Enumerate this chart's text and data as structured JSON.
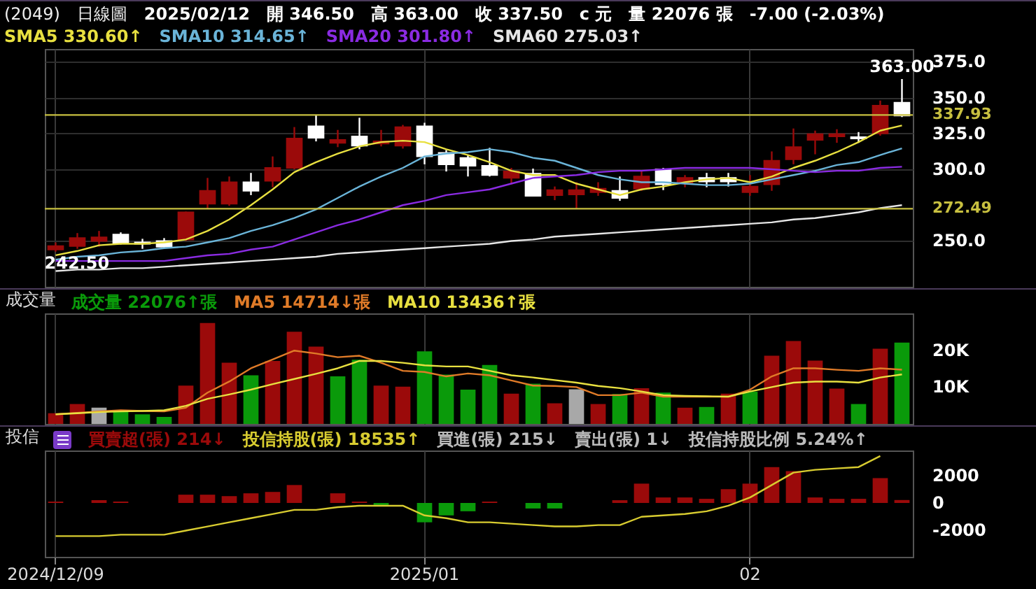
{
  "chart_data": [
    {
      "type": "candlestick",
      "title": "(2049)",
      "subtitle": "日線圖",
      "annotations": [
        "2025/02/12",
        "開 346.50",
        "高 363.00",
        "收 337.50",
        "c 元",
        "量 22076 張",
        "-7.00 (-2.03%)",
        {
          "text": "363.00",
          "y": 363
        },
        {
          "text": "242.50",
          "y": 242.5
        }
      ],
      "categories": [
        "2024/12/09",
        null,
        null,
        null,
        null,
        null,
        null,
        null,
        null,
        null,
        null,
        null,
        null,
        null,
        null,
        null,
        null,
        "2025/01",
        null,
        null,
        null,
        null,
        null,
        null,
        null,
        null,
        null,
        null,
        null,
        null,
        null,
        null,
        "02",
        null,
        null,
        null,
        null,
        null,
        null,
        null
      ],
      "ohlc": [
        [
          244,
          249,
          242.5,
          246.5
        ],
        [
          246.5,
          255.5,
          244.5,
          252
        ],
        [
          250,
          257,
          246,
          252.5
        ],
        [
          254.5,
          256,
          247.5,
          248.5
        ],
        [
          249,
          251.5,
          244.5,
          248
        ],
        [
          250,
          252,
          245.5,
          246
        ],
        [
          251,
          270.5,
          250,
          270
        ],
        [
          276,
          294,
          272.5,
          285
        ],
        [
          276,
          295,
          274.5,
          291
        ],
        [
          291,
          297.5,
          282,
          285
        ],
        [
          292,
          309,
          287.5,
          301
        ],
        [
          301,
          329.5,
          300,
          321.5
        ],
        [
          330,
          338,
          319.5,
          322
        ],
        [
          318.5,
          327.5,
          315.5,
          320.5
        ],
        [
          323,
          336,
          314,
          316.5
        ],
        [
          318,
          327.5,
          316,
          319.5
        ],
        [
          316.5,
          331,
          314.5,
          329.5
        ],
        [
          330,
          332.5,
          303.5,
          309
        ],
        [
          311.5,
          313.5,
          298.5,
          303.5
        ],
        [
          308,
          310,
          295,
          302.5
        ],
        [
          302.5,
          315,
          295,
          296
        ],
        [
          294,
          301,
          289.5,
          298.5
        ],
        [
          297,
          300.5,
          281,
          281.5
        ],
        [
          282,
          288,
          278.5,
          285.5
        ],
        [
          282.5,
          291,
          272.5,
          285.5
        ],
        [
          284,
          291,
          281.5,
          286.5
        ],
        [
          285,
          295,
          278,
          280
        ],
        [
          286.5,
          299.5,
          285,
          295
        ],
        [
          300,
          301,
          285.5,
          289.5
        ],
        [
          290.5,
          296,
          287.5,
          294
        ],
        [
          294,
          297.5,
          287.5,
          291.5
        ],
        [
          294,
          297.5,
          288,
          291.5
        ],
        [
          284,
          296,
          281.5,
          288
        ],
        [
          289.5,
          312.5,
          285,
          306
        ],
        [
          307,
          328.5,
          303.5,
          315.5
        ],
        [
          320.5,
          327,
          310.5,
          324.5
        ],
        [
          323,
          328,
          318.5,
          324.5
        ],
        [
          322.5,
          326,
          318.5,
          321.5
        ],
        [
          325,
          348,
          323.5,
          344.5
        ],
        [
          346.5,
          363,
          336.5,
          337.5
        ]
      ],
      "colors": [
        "#9b0a0a",
        "#9b0a0a",
        "#9b0a0a",
        "#ffffff",
        "#ffffff",
        "#ffffff",
        "#9b0a0a",
        "#9b0a0a",
        "#9b0a0a",
        "#ffffff",
        "#9b0a0a",
        "#9b0a0a",
        "#ffffff",
        "#9b0a0a",
        "#ffffff",
        "#9b0a0a",
        "#9b0a0a",
        "#ffffff",
        "#ffffff",
        "#ffffff",
        "#ffffff",
        "#9b0a0a",
        "#ffffff",
        "#9b0a0a",
        "#9b0a0a",
        "#9b0a0a",
        "#ffffff",
        "#9b0a0a",
        "#ffffff",
        "#9b0a0a",
        "#ffffff",
        "#ffffff",
        "#9b0a0a",
        "#9b0a0a",
        "#9b0a0a",
        "#9b0a0a",
        "#9b0a0a",
        "#ffffff",
        "#9b0a0a",
        "#ffffff"
      ],
      "series": [
        {
          "name": "SMA5 330.60↑",
          "type": "line",
          "color": "#e8e040",
          "values": [
            240,
            243,
            247,
            248,
            248,
            249,
            251,
            257,
            265,
            275,
            286,
            298,
            305,
            311,
            316,
            319,
            320,
            319,
            314,
            310,
            305,
            299,
            296,
            296,
            290,
            286,
            282,
            286,
            288,
            291,
            293,
            294,
            291,
            295,
            301,
            306,
            312,
            319,
            327,
            330.6
          ]
        },
        {
          "name": "SMA10 314.65↑",
          "type": "line",
          "color": "#6ab4d8",
          "values": [
            237,
            239,
            240,
            242,
            243,
            245,
            246,
            249,
            252,
            257,
            261,
            266,
            272,
            280,
            288,
            295,
            301,
            309,
            311,
            312,
            314,
            312,
            308,
            306,
            301,
            296,
            293,
            291,
            291,
            290,
            289,
            289,
            290,
            293,
            296,
            299,
            303,
            305,
            310,
            314.65
          ]
        },
        {
          "name": "SMA20 301.80↑",
          "type": "line",
          "color": "#8a2be2",
          "values": [
            236,
            236,
            236,
            236,
            236,
            236,
            238,
            240,
            241,
            244,
            246,
            251,
            256,
            261,
            265,
            270,
            275,
            278,
            282,
            284,
            286,
            290,
            294,
            295,
            296,
            298,
            299,
            299,
            300,
            301,
            301,
            301,
            301,
            300,
            299,
            298,
            299,
            299,
            301,
            301.8
          ]
        },
        {
          "name": "SMA60 275.03↑",
          "type": "line",
          "color": "#e6e6e6",
          "values": [
            229,
            230,
            230,
            231,
            231,
            232,
            233,
            234,
            235,
            236,
            237,
            238,
            239,
            241,
            242,
            243,
            244,
            245,
            246,
            247,
            248,
            250,
            251,
            253,
            254,
            255,
            256,
            257,
            258,
            259,
            260,
            261,
            262,
            263,
            265,
            266,
            268,
            270,
            273,
            275.03
          ]
        }
      ],
      "ylim": [
        218,
        384
      ],
      "yticks": [
        {
          "value": 250,
          "label": "250.0"
        },
        {
          "value": 300,
          "label": "300.0"
        },
        {
          "value": 325,
          "label": "325.0"
        },
        {
          "value": 350,
          "label": "350.0"
        },
        {
          "value": 375,
          "label": "375.0"
        }
      ],
      "ref_lines": [
        {
          "axis": "y",
          "value": 337.93,
          "label": "337.93",
          "color": "#c8c040"
        },
        {
          "axis": "y",
          "value": 272.49,
          "label": "272.49",
          "color": "#c8c040"
        }
      ],
      "grid": true,
      "legend": "top left",
      "tick_labels": "y"
    },
    {
      "type": "bar",
      "title": "成交量",
      "categories": [
        "2024/12/09",
        null,
        null,
        null,
        null,
        null,
        null,
        null,
        null,
        null,
        null,
        null,
        null,
        null,
        null,
        null,
        null,
        "2025/01",
        null,
        null,
        null,
        null,
        null,
        null,
        null,
        null,
        null,
        null,
        null,
        null,
        null,
        null,
        "02",
        null,
        null,
        null,
        null,
        null,
        null,
        null
      ],
      "series": [
        {
          "name": "成交量 22076↑張",
          "type": "bar",
          "colors": [
            "#9b0a0a",
            "#9b0a0a",
            "#a8a8a8",
            "#0a9a0a",
            "#0a9a0a",
            "#0a9a0a",
            "#9b0a0a",
            "#9b0a0a",
            "#9b0a0a",
            "#0a9a0a",
            "#9b0a0a",
            "#9b0a0a",
            "#9b0a0a",
            "#0a9a0a",
            "#0a9a0a",
            "#9b0a0a",
            "#9b0a0a",
            "#0a9a0a",
            "#0a9a0a",
            "#0a9a0a",
            "#0a9a0a",
            "#9b0a0a",
            "#0a9a0a",
            "#9b0a0a",
            "#a8a8a8",
            "#9b0a0a",
            "#0a9a0a",
            "#9b0a0a",
            "#0a9a0a",
            "#9b0a0a",
            "#0a9a0a",
            "#9b0a0a",
            "#0a9a0a",
            "#9b0a0a",
            "#9b0a0a",
            "#9b0a0a",
            "#9b0a0a",
            "#0a9a0a",
            "#9b0a0a",
            "#0a9a0a"
          ],
          "values": [
            2900,
            5400,
            4400,
            3400,
            2600,
            1900,
            10400,
            27400,
            16600,
            13200,
            17100,
            25000,
            21000,
            12900,
            17400,
            10400,
            10100,
            19700,
            13400,
            9300,
            16000,
            8200,
            10900,
            5600,
            9400,
            5400,
            8100,
            9700,
            8500,
            4400,
            4600,
            8200,
            8800,
            18500,
            22500,
            17200,
            9600,
            5400,
            20400,
            22076
          ]
        },
        {
          "name": "MA5 14714↓張",
          "type": "line",
          "color": "#e07b28",
          "values": [
            2600,
            3000,
            3400,
            3700,
            3500,
            3400,
            4400,
            8500,
            11500,
            15100,
            17500,
            19900,
            19100,
            18100,
            18500,
            16600,
            14400,
            14100,
            12900,
            13700,
            13200,
            11800,
            10400,
            10300,
            10000,
            7800,
            7800,
            8500,
            7400,
            7400,
            7400,
            7400,
            9300,
            12900,
            15100,
            15100,
            14700,
            14400,
            15100,
            14714
          ]
        },
        {
          "name": "MA10 13436↑張",
          "type": "line",
          "color": "#e8e040",
          "values": [
            2600,
            2900,
            3200,
            3400,
            3500,
            3700,
            4900,
            6800,
            8000,
            9300,
            10800,
            12200,
            13600,
            15100,
            17100,
            17100,
            16600,
            15900,
            15600,
            15600,
            14400,
            13200,
            12600,
            11900,
            11200,
            10300,
            9700,
            8800,
            7800,
            7600,
            7500,
            7400,
            8800,
            10000,
            11200,
            11500,
            11500,
            11200,
            12600,
            13436
          ]
        }
      ],
      "ylim": [
        0,
        30000
      ],
      "yticks": [
        {
          "value": 10000,
          "label": "10K"
        },
        {
          "value": 20000,
          "label": "20K"
        }
      ],
      "grid": "x",
      "legend": "top left",
      "tick_labels": "y"
    },
    {
      "type": "bar",
      "title": "投信",
      "annotations": [
        "買進(張) 215↓",
        "賣出(張) 1↓",
        "投信持股比例 5.24%↑"
      ],
      "categories": [
        "2024/12/09",
        null,
        null,
        null,
        null,
        null,
        null,
        null,
        null,
        null,
        null,
        null,
        null,
        null,
        null,
        null,
        null,
        "2025/01",
        null,
        null,
        null,
        null,
        null,
        null,
        null,
        null,
        null,
        null,
        null,
        null,
        null,
        null,
        "02",
        null,
        null,
        null,
        null,
        null,
        null,
        null
      ],
      "series": [
        {
          "name": "買賣超(張) 214↓",
          "type": "bar",
          "colors": [
            "#9b0a0a",
            "#9b0a0a",
            "#9b0a0a",
            "#9b0a0a",
            "#9b0a0a",
            "#9b0a0a",
            "#9b0a0a",
            "#9b0a0a",
            "#9b0a0a",
            "#9b0a0a",
            "#9b0a0a",
            "#9b0a0a",
            "#9b0a0a",
            "#9b0a0a",
            "#9b0a0a",
            "#0a9a0a",
            "#9b0a0a",
            "#0a9a0a",
            "#0a9a0a",
            "#0a9a0a",
            "#9b0a0a",
            "#9b0a0a",
            "#0a9a0a",
            "#0a9a0a",
            "#9b0a0a",
            "#9b0a0a",
            "#9b0a0a",
            "#9b0a0a",
            "#9b0a0a",
            "#9b0a0a",
            "#9b0a0a",
            "#9b0a0a",
            "#9b0a0a",
            "#9b0a0a",
            "#9b0a0a",
            "#9b0a0a",
            "#9b0a0a",
            "#9b0a0a",
            "#9b0a0a",
            "#9b0a0a"
          ],
          "values": [
            100,
            0,
            200,
            100,
            0,
            0,
            600,
            600,
            500,
            700,
            800,
            1300,
            0,
            700,
            100,
            -200,
            0,
            -1400,
            -900,
            -600,
            100,
            0,
            -400,
            -400,
            0,
            0,
            200,
            1400,
            400,
            400,
            300,
            1000,
            1400,
            2600,
            2300,
            400,
            300,
            300,
            1800,
            214
          ]
        },
        {
          "name": "投信持股(張) 18535↑",
          "type": "line",
          "color": "#d8cc30",
          "values": [
            -2400,
            -2400,
            -2400,
            -2300,
            -2300,
            -2300,
            -2000,
            -1700,
            -1400,
            -1100,
            -800,
            -500,
            -500,
            -300,
            -200,
            -200,
            -200,
            -900,
            -1100,
            -1400,
            -1400,
            -1500,
            -1600,
            -1700,
            -1700,
            -1600,
            -1600,
            -1000,
            -900,
            -800,
            -600,
            -200,
            400,
            1300,
            2200,
            2400,
            2500,
            2600,
            3400,
            null
          ]
        }
      ],
      "ylim": [
        -3900,
        3800
      ],
      "yticks": [
        2000,
        0,
        -2000
      ],
      "grid": "x",
      "legend": "top left"
    }
  ]
}
